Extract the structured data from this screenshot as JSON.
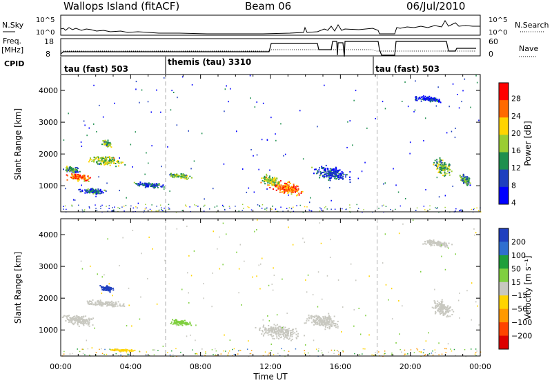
{
  "header": {
    "site": "Wallops Island (fitACF)",
    "beam": "Beam 06",
    "date": "06/Jul/2010"
  },
  "top_panels": {
    "nsky_label": "N.Sky",
    "nsearch_label": "N.Search",
    "nsky_ticks": [
      "10^5",
      "10^0"
    ],
    "nsearch_ticks": [
      "10^5",
      "10^0"
    ],
    "freq_label": "Freq.",
    "freq_unit": "[MHz]",
    "freq_ticks": [
      "18",
      "8"
    ],
    "nave_label": "Nave",
    "nave_ticks": [
      "60",
      "0"
    ],
    "cpid_label": "CPID",
    "cpid_segments": [
      {
        "label": "tau (fast) 503",
        "start_h": 0,
        "end_h": 6
      },
      {
        "label": "themis (tau) 3310",
        "start_h": 6,
        "end_h": 18.1
      },
      {
        "label": "tau (fast) 503",
        "start_h": 18.1,
        "end_h": 24
      }
    ]
  },
  "power_colorbar": {
    "label": "Power [dB]",
    "ticks": [
      "28",
      "24",
      "20",
      "16",
      "12",
      "8",
      "4"
    ],
    "colors": [
      "#ff0000",
      "#ff6a00",
      "#ffd400",
      "#9acd32",
      "#1e8f4e",
      "#1e3fbf",
      "#0000ff"
    ]
  },
  "velocity_colorbar": {
    "label": "Velocity [m s⁻¹]",
    "ticks": [
      "200",
      "100",
      "50",
      "15",
      "−15",
      "−50",
      "−100",
      "−200"
    ],
    "colors": [
      "#1f3fbf",
      "#2f6fd0",
      "#1f9f3a",
      "#7fcf3f",
      "#c8c8c0",
      "#ffd400",
      "#ff9900",
      "#ff4400",
      "#dd0000"
    ]
  },
  "chart_data": {
    "type": "heatmap",
    "xlabel": "Time UT",
    "x_ticks": [
      "00:00",
      "04:00",
      "08:00",
      "12:00",
      "16:00",
      "20:00",
      "00:00"
    ],
    "x_range_hours": [
      0,
      24
    ],
    "ylabel": "Slant Range [km]",
    "y_ticks": [
      1000,
      2000,
      3000,
      4000
    ],
    "ylim": [
      180,
      4500
    ],
    "panels": [
      {
        "name": "power",
        "blobs": [
          {
            "t": 1.0,
            "r": 1280,
            "dt": 1.0,
            "dr": 170,
            "v": 24
          },
          {
            "t": 0.6,
            "r": 1520,
            "dt": 0.7,
            "dr": 140,
            "v": 12
          },
          {
            "t": 2.5,
            "r": 1800,
            "dt": 1.6,
            "dr": 220,
            "v": 16
          },
          {
            "t": 2.6,
            "r": 2350,
            "dt": 0.4,
            "dr": 150,
            "v": 14
          },
          {
            "t": 1.8,
            "r": 850,
            "dt": 1.2,
            "dr": 140,
            "v": 10
          },
          {
            "t": 6.8,
            "r": 1330,
            "dt": 1.0,
            "dr": 130,
            "v": 14
          },
          {
            "t": 5.0,
            "r": 1050,
            "dt": 1.3,
            "dr": 130,
            "v": 8
          },
          {
            "t": 12.9,
            "r": 950,
            "dt": 1.4,
            "dr": 320,
            "v": 24
          },
          {
            "t": 12.0,
            "r": 1180,
            "dt": 0.9,
            "dr": 240,
            "v": 16
          },
          {
            "t": 15.5,
            "r": 1400,
            "dt": 1.6,
            "dr": 350,
            "v": 8
          },
          {
            "t": 21.8,
            "r": 1600,
            "dt": 0.8,
            "dr": 380,
            "v": 14
          },
          {
            "t": 23.1,
            "r": 1200,
            "dt": 0.5,
            "dr": 250,
            "v": 12
          },
          {
            "t": 21.0,
            "r": 3750,
            "dt": 1.2,
            "dr": 150,
            "v": 6
          }
        ]
      },
      {
        "name": "velocity",
        "blobs": [
          {
            "t": 1.0,
            "r": 1330,
            "dt": 1.6,
            "dr": 260,
            "v": 0
          },
          {
            "t": 2.5,
            "r": 1850,
            "dt": 1.8,
            "dr": 160,
            "v": 0
          },
          {
            "t": 2.6,
            "r": 2320,
            "dt": 0.6,
            "dr": 140,
            "v": 200
          },
          {
            "t": 6.8,
            "r": 1250,
            "dt": 1.0,
            "dr": 130,
            "v": 40
          },
          {
            "t": 12.5,
            "r": 950,
            "dt": 2.0,
            "dr": 330,
            "v": 0
          },
          {
            "t": 15.0,
            "r": 1300,
            "dt": 1.6,
            "dr": 350,
            "v": 0
          },
          {
            "t": 3.5,
            "r": 380,
            "dt": 1.2,
            "dr": 60,
            "v": -40
          },
          {
            "t": 21.8,
            "r": 1700,
            "dt": 0.9,
            "dr": 380,
            "v": 0
          },
          {
            "t": 21.5,
            "r": 3750,
            "dt": 1.3,
            "dr": 160,
            "v": 0
          }
        ]
      }
    ]
  }
}
